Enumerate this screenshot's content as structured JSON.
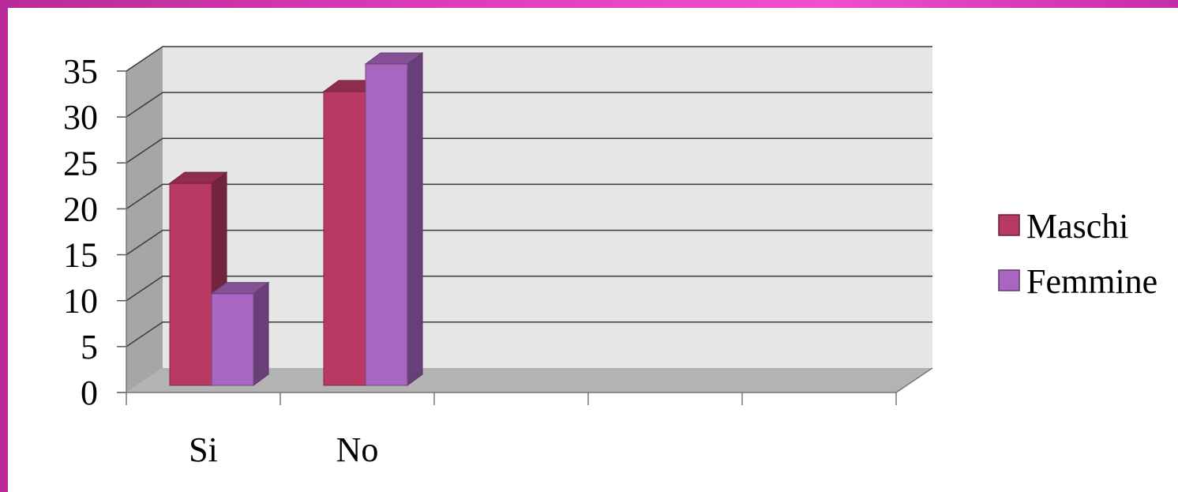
{
  "chart_data": {
    "type": "bar",
    "style": "3d-clustered-column",
    "categories": [
      "Si",
      "No",
      "",
      "",
      ""
    ],
    "series": [
      {
        "name": "Maschi",
        "values": [
          22,
          32,
          null,
          null,
          null
        ],
        "color": "#b83a62"
      },
      {
        "name": "Femmine",
        "values": [
          10,
          35,
          null,
          null,
          null
        ],
        "color": "#a966c0"
      }
    ],
    "ylim": [
      0,
      35
    ],
    "yticks": [
      "0",
      "5",
      "10",
      "15",
      "20",
      "25",
      "30",
      "35"
    ],
    "grid": true,
    "legend": "right",
    "title": "",
    "xlabel": "",
    "ylabel": ""
  },
  "colors": {
    "wall": "#e6e6e6",
    "side_wall": "#a6a6a6",
    "floor": "#b3b3b3",
    "gridline": "#3a3a3a",
    "frame_left": "#c2289b",
    "frame_top": "#f04fcf"
  }
}
